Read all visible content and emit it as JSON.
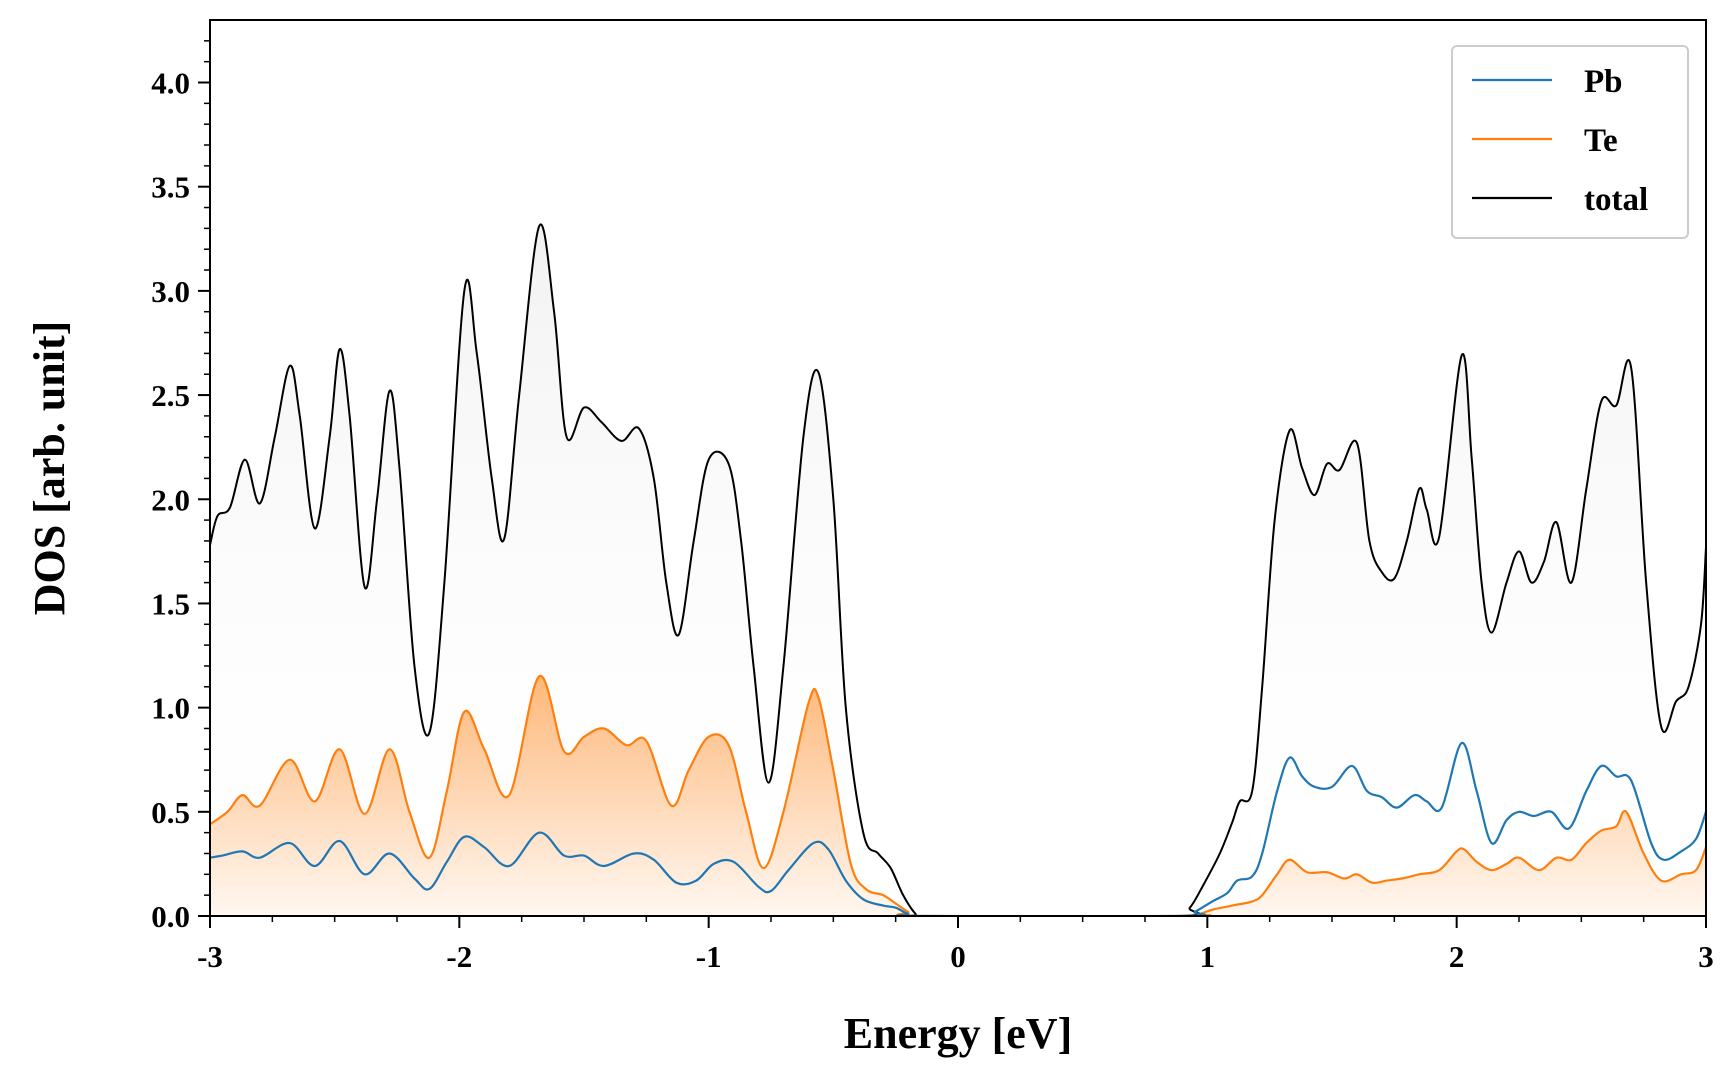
{
  "chart_data": {
    "type": "line",
    "title": "",
    "xlabel": "Energy [eV]",
    "ylabel": "DOS [arb. unit]",
    "xlim": [
      -3,
      3
    ],
    "ylim": [
      0,
      4.3
    ],
    "xticks": [
      -3,
      -2,
      -1,
      0,
      1,
      2,
      3
    ],
    "xtick_labels": [
      "-3",
      "-2",
      "-1",
      "0",
      "1",
      "2",
      "3"
    ],
    "yticks": [
      0,
      0.5,
      1,
      1.5,
      2,
      2.5,
      3,
      3.5,
      4
    ],
    "ytick_labels": [
      "0.0",
      "0.5",
      "1.0",
      "1.5",
      "2.0",
      "2.5",
      "3.0",
      "3.5",
      "4.0"
    ],
    "grid": false,
    "legend_position": "top-right",
    "series": [
      {
        "name": "Pb",
        "color": "#1f77b4",
        "filled": false,
        "points": [
          [
            -3,
            0.28
          ],
          [
            -2.95,
            0.29
          ],
          [
            -2.87,
            0.31
          ],
          [
            -2.8,
            0.28
          ],
          [
            -2.68,
            0.35
          ],
          [
            -2.58,
            0.24
          ],
          [
            -2.48,
            0.36
          ],
          [
            -2.38,
            0.2
          ],
          [
            -2.28,
            0.3
          ],
          [
            -2.18,
            0.18
          ],
          [
            -2.12,
            0.13
          ],
          [
            -2.05,
            0.26
          ],
          [
            -1.98,
            0.38
          ],
          [
            -1.9,
            0.33
          ],
          [
            -1.8,
            0.24
          ],
          [
            -1.68,
            0.4
          ],
          [
            -1.58,
            0.29
          ],
          [
            -1.5,
            0.29
          ],
          [
            -1.42,
            0.24
          ],
          [
            -1.3,
            0.3
          ],
          [
            -1.22,
            0.27
          ],
          [
            -1.13,
            0.16
          ],
          [
            -1.05,
            0.17
          ],
          [
            -0.98,
            0.25
          ],
          [
            -0.9,
            0.26
          ],
          [
            -0.8,
            0.14
          ],
          [
            -0.75,
            0.12
          ],
          [
            -0.68,
            0.22
          ],
          [
            -0.58,
            0.35
          ],
          [
            -0.52,
            0.32
          ],
          [
            -0.45,
            0.17
          ],
          [
            -0.38,
            0.08
          ],
          [
            -0.3,
            0.05
          ],
          [
            -0.25,
            0.04
          ],
          [
            -0.2,
            0.01
          ],
          [
            -0.15,
            0
          ],
          [
            0.9,
            0
          ],
          [
            0.95,
            0.02
          ],
          [
            1.02,
            0.07
          ],
          [
            1.08,
            0.11
          ],
          [
            1.12,
            0.17
          ],
          [
            1.18,
            0.19
          ],
          [
            1.22,
            0.3
          ],
          [
            1.28,
            0.6
          ],
          [
            1.33,
            0.76
          ],
          [
            1.38,
            0.67
          ],
          [
            1.43,
            0.62
          ],
          [
            1.5,
            0.62
          ],
          [
            1.58,
            0.72
          ],
          [
            1.64,
            0.6
          ],
          [
            1.7,
            0.57
          ],
          [
            1.76,
            0.52
          ],
          [
            1.83,
            0.58
          ],
          [
            1.88,
            0.55
          ],
          [
            1.94,
            0.52
          ],
          [
            2.02,
            0.83
          ],
          [
            2.08,
            0.6
          ],
          [
            2.14,
            0.35
          ],
          [
            2.2,
            0.46
          ],
          [
            2.25,
            0.5
          ],
          [
            2.31,
            0.48
          ],
          [
            2.38,
            0.5
          ],
          [
            2.45,
            0.42
          ],
          [
            2.52,
            0.6
          ],
          [
            2.58,
            0.72
          ],
          [
            2.64,
            0.67
          ],
          [
            2.7,
            0.65
          ],
          [
            2.78,
            0.35
          ],
          [
            2.83,
            0.27
          ],
          [
            2.9,
            0.31
          ],
          [
            2.96,
            0.37
          ],
          [
            3,
            0.5
          ]
        ]
      },
      {
        "name": "Te",
        "color": "#ff7f0e",
        "filled": true,
        "points": [
          [
            -3,
            0.44
          ],
          [
            -2.93,
            0.5
          ],
          [
            -2.87,
            0.58
          ],
          [
            -2.8,
            0.53
          ],
          [
            -2.68,
            0.75
          ],
          [
            -2.58,
            0.55
          ],
          [
            -2.48,
            0.8
          ],
          [
            -2.38,
            0.49
          ],
          [
            -2.28,
            0.8
          ],
          [
            -2.2,
            0.5
          ],
          [
            -2.12,
            0.28
          ],
          [
            -2.05,
            0.6
          ],
          [
            -1.98,
            0.98
          ],
          [
            -1.9,
            0.8
          ],
          [
            -1.8,
            0.58
          ],
          [
            -1.68,
            1.15
          ],
          [
            -1.58,
            0.79
          ],
          [
            -1.5,
            0.86
          ],
          [
            -1.42,
            0.9
          ],
          [
            -1.33,
            0.82
          ],
          [
            -1.25,
            0.84
          ],
          [
            -1.15,
            0.53
          ],
          [
            -1.08,
            0.7
          ],
          [
            -1.0,
            0.86
          ],
          [
            -0.92,
            0.82
          ],
          [
            -0.85,
            0.5
          ],
          [
            -0.78,
            0.23
          ],
          [
            -0.7,
            0.5
          ],
          [
            -0.6,
            1.02
          ],
          [
            -0.56,
            1.05
          ],
          [
            -0.5,
            0.7
          ],
          [
            -0.43,
            0.25
          ],
          [
            -0.37,
            0.13
          ],
          [
            -0.3,
            0.1
          ],
          [
            -0.25,
            0.06
          ],
          [
            -0.2,
            0.02
          ],
          [
            -0.15,
            0
          ],
          [
            0.92,
            0
          ],
          [
            0.97,
            0.01
          ],
          [
            1.02,
            0.03
          ],
          [
            1.1,
            0.05
          ],
          [
            1.18,
            0.07
          ],
          [
            1.22,
            0.1
          ],
          [
            1.28,
            0.2
          ],
          [
            1.33,
            0.27
          ],
          [
            1.4,
            0.21
          ],
          [
            1.48,
            0.21
          ],
          [
            1.55,
            0.18
          ],
          [
            1.6,
            0.2
          ],
          [
            1.66,
            0.16
          ],
          [
            1.72,
            0.17
          ],
          [
            1.78,
            0.18
          ],
          [
            1.85,
            0.2
          ],
          [
            1.93,
            0.22
          ],
          [
            2.0,
            0.31
          ],
          [
            2.03,
            0.32
          ],
          [
            2.08,
            0.26
          ],
          [
            2.14,
            0.22
          ],
          [
            2.2,
            0.25
          ],
          [
            2.25,
            0.28
          ],
          [
            2.33,
            0.22
          ],
          [
            2.4,
            0.28
          ],
          [
            2.46,
            0.27
          ],
          [
            2.52,
            0.35
          ],
          [
            2.58,
            0.41
          ],
          [
            2.64,
            0.43
          ],
          [
            2.68,
            0.5
          ],
          [
            2.75,
            0.3
          ],
          [
            2.82,
            0.17
          ],
          [
            2.9,
            0.2
          ],
          [
            2.96,
            0.22
          ],
          [
            3,
            0.33
          ]
        ]
      },
      {
        "name": "total",
        "color": "#000000",
        "filled": true,
        "points": [
          [
            -3,
            1.78
          ],
          [
            -2.97,
            1.92
          ],
          [
            -2.92,
            1.96
          ],
          [
            -2.86,
            2.19
          ],
          [
            -2.8,
            1.98
          ],
          [
            -2.74,
            2.3
          ],
          [
            -2.68,
            2.64
          ],
          [
            -2.64,
            2.4
          ],
          [
            -2.58,
            1.86
          ],
          [
            -2.52,
            2.3
          ],
          [
            -2.48,
            2.72
          ],
          [
            -2.44,
            2.4
          ],
          [
            -2.38,
            1.58
          ],
          [
            -2.33,
            2.0
          ],
          [
            -2.28,
            2.52
          ],
          [
            -2.24,
            2.15
          ],
          [
            -2.18,
            1.2
          ],
          [
            -2.12,
            0.88
          ],
          [
            -2.06,
            1.6
          ],
          [
            -1.98,
            3.0
          ],
          [
            -1.93,
            2.7
          ],
          [
            -1.87,
            2.1
          ],
          [
            -1.82,
            1.81
          ],
          [
            -1.76,
            2.5
          ],
          [
            -1.68,
            3.31
          ],
          [
            -1.62,
            2.9
          ],
          [
            -1.57,
            2.3
          ],
          [
            -1.5,
            2.44
          ],
          [
            -1.43,
            2.37
          ],
          [
            -1.35,
            2.28
          ],
          [
            -1.28,
            2.34
          ],
          [
            -1.22,
            2.1
          ],
          [
            -1.17,
            1.6
          ],
          [
            -1.12,
            1.35
          ],
          [
            -1.06,
            1.8
          ],
          [
            -1.0,
            2.19
          ],
          [
            -0.92,
            2.17
          ],
          [
            -0.87,
            1.8
          ],
          [
            -0.82,
            1.2
          ],
          [
            -0.76,
            0.64
          ],
          [
            -0.7,
            1.2
          ],
          [
            -0.62,
            2.3
          ],
          [
            -0.56,
            2.61
          ],
          [
            -0.5,
            2.0
          ],
          [
            -0.45,
            1.0
          ],
          [
            -0.38,
            0.4
          ],
          [
            -0.32,
            0.3
          ],
          [
            -0.27,
            0.23
          ],
          [
            -0.22,
            0.1
          ],
          [
            -0.17,
            0.01
          ],
          [
            -0.14,
            0
          ],
          [
            0.88,
            0
          ],
          [
            0.93,
            0.04
          ],
          [
            0.98,
            0.14
          ],
          [
            1.05,
            0.3
          ],
          [
            1.1,
            0.45
          ],
          [
            1.13,
            0.55
          ],
          [
            1.18,
            0.6
          ],
          [
            1.22,
            1.1
          ],
          [
            1.27,
            1.9
          ],
          [
            1.33,
            2.33
          ],
          [
            1.38,
            2.15
          ],
          [
            1.43,
            2.02
          ],
          [
            1.48,
            2.17
          ],
          [
            1.53,
            2.14
          ],
          [
            1.6,
            2.27
          ],
          [
            1.65,
            1.8
          ],
          [
            1.7,
            1.65
          ],
          [
            1.75,
            1.62
          ],
          [
            1.8,
            1.8
          ],
          [
            1.85,
            2.05
          ],
          [
            1.88,
            1.95
          ],
          [
            1.93,
            1.82
          ],
          [
            2.02,
            2.69
          ],
          [
            2.06,
            2.2
          ],
          [
            2.1,
            1.6
          ],
          [
            2.14,
            1.36
          ],
          [
            2.2,
            1.6
          ],
          [
            2.25,
            1.75
          ],
          [
            2.3,
            1.6
          ],
          [
            2.35,
            1.7
          ],
          [
            2.4,
            1.89
          ],
          [
            2.46,
            1.6
          ],
          [
            2.52,
            2.05
          ],
          [
            2.58,
            2.47
          ],
          [
            2.64,
            2.45
          ],
          [
            2.7,
            2.63
          ],
          [
            2.76,
            1.6
          ],
          [
            2.82,
            0.91
          ],
          [
            2.88,
            1.03
          ],
          [
            2.93,
            1.1
          ],
          [
            2.98,
            1.4
          ],
          [
            3,
            1.77
          ]
        ]
      }
    ]
  }
}
